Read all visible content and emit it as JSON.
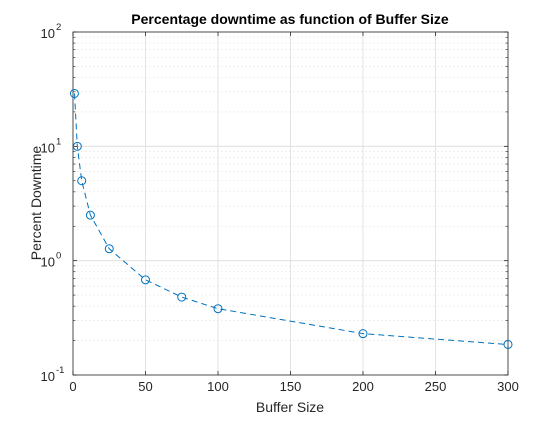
{
  "chart_data": {
    "type": "line",
    "title": "Percentage downtime as function of Buffer Size",
    "xlabel": "Buffer Size",
    "ylabel": "Percent Downtime",
    "xlim": [
      0,
      300
    ],
    "ylim": [
      0.1,
      100
    ],
    "yscale": "log",
    "grid": true,
    "minor_grid": true,
    "line_style": "dashed",
    "marker": "circle",
    "series_color": "#0072BD",
    "grid_color": "#dcdcdc",
    "x_ticks": [
      "0",
      "50",
      "100",
      "150",
      "200",
      "250",
      "300"
    ],
    "y_ticks": [
      {
        "base": "10",
        "exp": "-1"
      },
      {
        "base": "10",
        "exp": "0"
      },
      {
        "base": "10",
        "exp": "1"
      },
      {
        "base": "10",
        "exp": "2"
      }
    ],
    "series": [
      {
        "x": [
          1,
          3,
          6,
          12,
          25,
          50,
          75,
          100,
          200,
          300
        ],
        "values": [
          29,
          10,
          5,
          2.5,
          1.27,
          0.68,
          0.48,
          0.38,
          0.23,
          0.185
        ]
      }
    ]
  }
}
